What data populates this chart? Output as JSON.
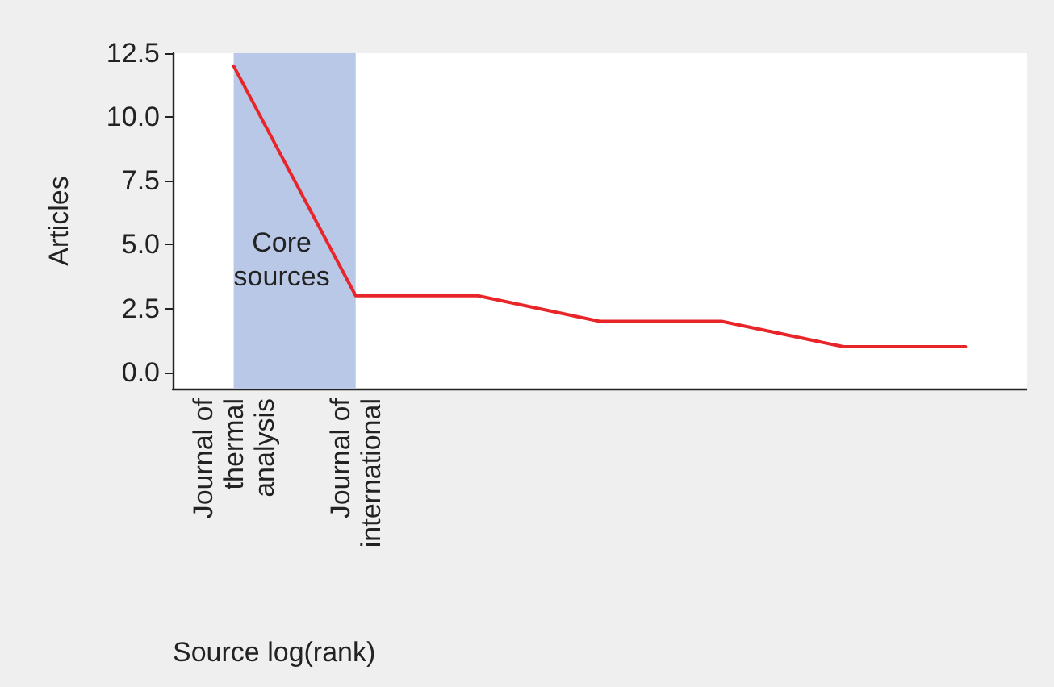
{
  "chart_data": {
    "type": "line",
    "xlabel": "Source log(rank)",
    "ylabel": "Articles",
    "categories": [
      "Journal of\nthermal\nanalysis",
      "Journal of\ninternational",
      null,
      null,
      null,
      null,
      null
    ],
    "series": [
      {
        "color": "#e8262a",
        "values": [
          12,
          3,
          3,
          2,
          2,
          1,
          1
        ]
      }
    ],
    "ylim": [
      -0.64,
      12.5
    ],
    "yticks": [
      {
        "value": 0,
        "label": "0.0"
      },
      2.5,
      {
        "value": 5,
        "label": "5.0"
      },
      7.5,
      {
        "value": 10,
        "label": "10.0"
      },
      12.5
    ],
    "bands": [
      {
        "axis": "x",
        "from": "Journal of\nthermal\nanalysis",
        "to": "Journal of\ninternational",
        "label": "Core\nsources",
        "color": "#b9c8e6"
      }
    ],
    "grid": false,
    "marker": "none",
    "line_style": "solid"
  }
}
